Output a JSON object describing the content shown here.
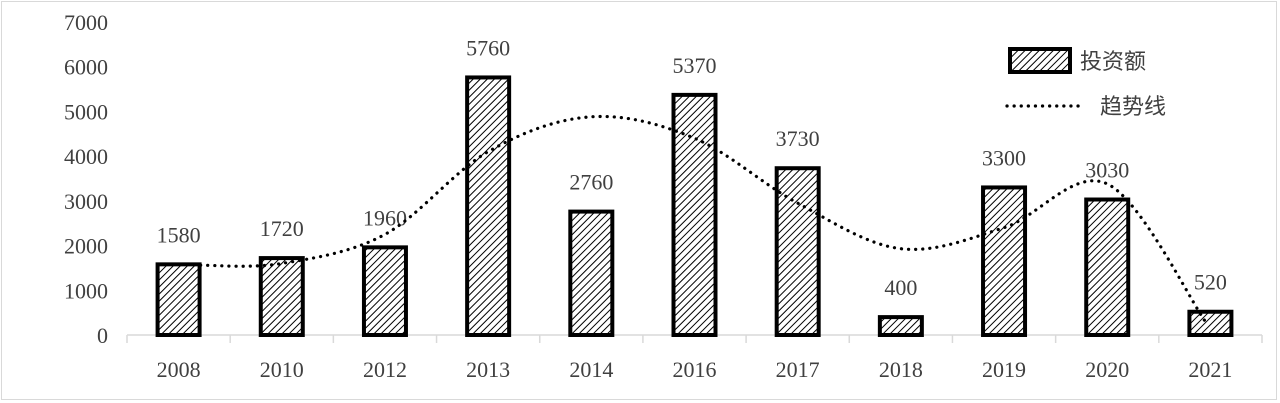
{
  "chart_data": {
    "type": "bar",
    "categories": [
      "2008",
      "2010",
      "2012",
      "2013",
      "2014",
      "2016",
      "2017",
      "2018",
      "2019",
      "2020",
      "2021"
    ],
    "series": [
      {
        "name": "投资额",
        "type": "bar",
        "values": [
          1580,
          1720,
          1960,
          5760,
          2760,
          5370,
          3730,
          400,
          3300,
          3030,
          520
        ],
        "fill": "hatched",
        "stroke": "#000000"
      },
      {
        "name": "趋势线",
        "type": "line",
        "style": "dotted",
        "values": [
          1560,
          1600,
          2250,
          4100,
          4880,
          4400,
          2950,
          1930,
          2400,
          3380,
          300
        ],
        "color": "#000000"
      }
    ],
    "y_ticks": [
      "0",
      "1000",
      "2000",
      "3000",
      "4000",
      "5000",
      "6000",
      "7000"
    ],
    "ylim": [
      0,
      7000
    ],
    "grid": false,
    "data_labels": true,
    "legend_position": "top-right",
    "text_color": "#404040"
  }
}
